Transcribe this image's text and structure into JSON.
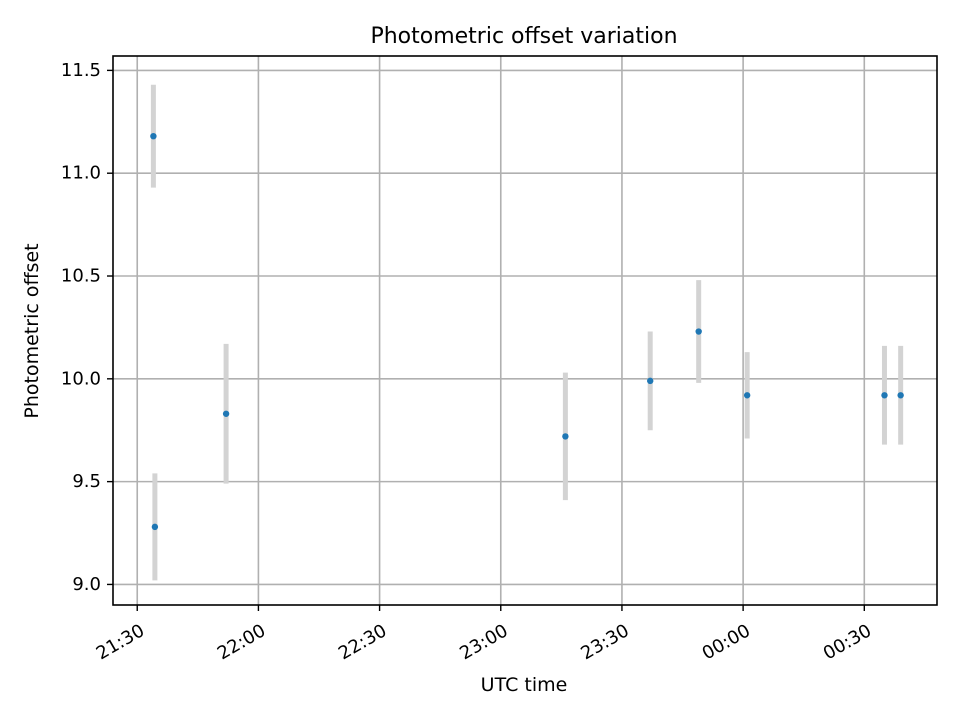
{
  "chart_data": {
    "type": "scatter",
    "title": "Photometric offset variation",
    "xlabel": "UTC time",
    "ylabel": "Photometric offset",
    "x_ticks": [
      "21:30",
      "22:00",
      "22:30",
      "23:00",
      "23:30",
      "00:00",
      "00:30"
    ],
    "y_ticks": [
      "9.0",
      "9.5",
      "10.0",
      "10.5",
      "11.0",
      "11.5"
    ],
    "ylim": [
      8.9,
      11.57
    ],
    "xlim": [
      "21:24",
      "00:48"
    ],
    "grid": true,
    "marker_color": "#1f77b4",
    "errorbar_color": "#d3d3d3",
    "series": [
      {
        "points": [
          {
            "t": "21:34",
            "y": 11.18,
            "err": 0.25
          },
          {
            "t": "21:34",
            "y": 9.28,
            "err": 0.26
          },
          {
            "t": "21:52",
            "y": 9.83,
            "err": 0.34
          },
          {
            "t": "23:16",
            "y": 9.72,
            "err": 0.31
          },
          {
            "t": "23:37",
            "y": 9.99,
            "err": 0.24
          },
          {
            "t": "23:49",
            "y": 10.23,
            "err": 0.25
          },
          {
            "t": "00:01",
            "y": 9.92,
            "err": 0.21
          },
          {
            "t": "00:35",
            "y": 9.92,
            "err": 0.24
          },
          {
            "t": "00:39",
            "y": 9.92,
            "err": 0.24
          }
        ]
      }
    ]
  }
}
